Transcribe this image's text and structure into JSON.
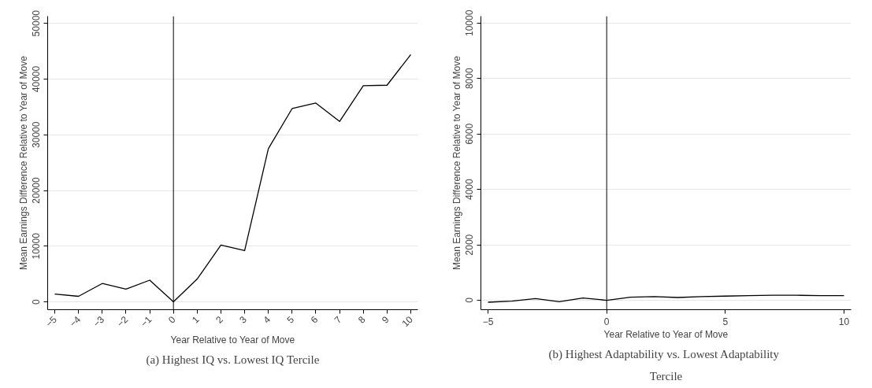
{
  "chart_data": [
    {
      "type": "line",
      "xlabel": "Year Relative to Year of Move",
      "ylabel": "Mean Earnings Difference Relative to Year of Move",
      "x": [
        -5,
        -4,
        -3,
        -2,
        -1,
        0,
        1,
        2,
        3,
        4,
        5,
        6,
        7,
        8,
        9,
        10
      ],
      "series": [
        {
          "color": "#000000",
          "values": [
            1400,
            1000,
            3300,
            2300,
            3900,
            0,
            4100,
            10200,
            9200,
            27500,
            34700,
            35700,
            32400,
            38800,
            38900,
            44400
          ]
        }
      ],
      "xlim": [
        -5.3,
        10.3
      ],
      "ylim": [
        -1400,
        51300
      ],
      "xticks": [
        -5,
        -4,
        -3,
        -2,
        -1,
        0,
        1,
        2,
        3,
        4,
        5,
        6,
        7,
        8,
        9,
        10
      ],
      "yticks": [
        0,
        10000,
        20000,
        30000,
        40000,
        50000
      ],
      "grid": "y",
      "ref_lines": [
        {
          "axis": "x",
          "value": 0,
          "color": "#000000"
        }
      ],
      "annotations": [
        "(a) Highest IQ vs. Lowest IQ Tercile"
      ]
    },
    {
      "type": "line",
      "xlabel": "Year Relative to Year of Move",
      "ylabel": "Mean Earnings Difference Relative to Year of Move",
      "x": [
        -5,
        -4,
        -3,
        -2,
        -1,
        0,
        1,
        2,
        3,
        4,
        5,
        6,
        7,
        8,
        9,
        10
      ],
      "series": [
        {
          "color": "#000000",
          "values": [
            -70,
            -30,
            60,
            -50,
            80,
            0,
            110,
            130,
            100,
            130,
            150,
            170,
            180,
            180,
            170,
            170
          ]
        }
      ],
      "xlim": [
        -5.3,
        10.3
      ],
      "ylim": [
        -340,
        10250
      ],
      "xticks": [
        -5,
        0,
        5,
        10
      ],
      "yticks": [
        0,
        2000,
        4000,
        6000,
        8000,
        10000
      ],
      "grid": "y",
      "ref_lines": [
        {
          "axis": "x",
          "value": 0,
          "color": "#000000"
        }
      ],
      "annotations": [
        "(b) Highest Adaptability vs.  Lowest Adaptability Tercile"
      ]
    }
  ]
}
